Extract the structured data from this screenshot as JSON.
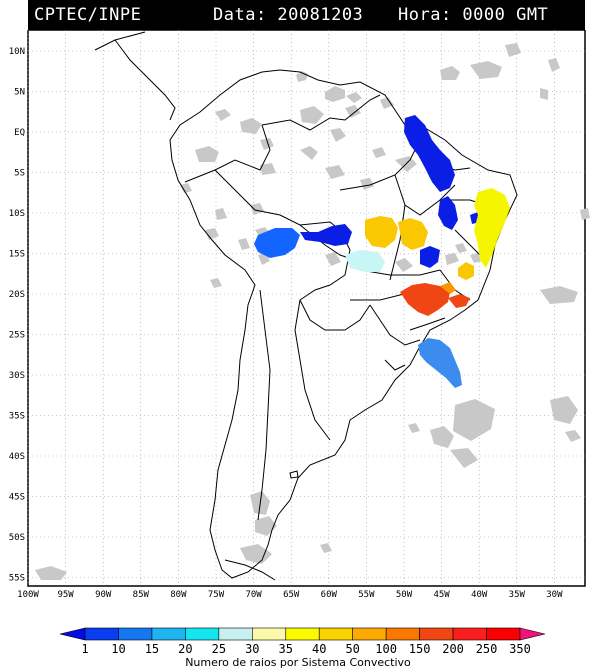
{
  "header": {
    "source": "CPTEC/INPE",
    "date_label": "Data: 20081203",
    "time_label": "Hora: 0000 GMT"
  },
  "axes": {
    "lat_labels": [
      "10N",
      "5N",
      "EQ",
      "5S",
      "10S",
      "15S",
      "20S",
      "25S",
      "30S",
      "35S",
      "40S",
      "45S",
      "50S",
      "55S"
    ],
    "lon_labels": [
      "100W",
      "95W",
      "90W",
      "85W",
      "80W",
      "75W",
      "70W",
      "65W",
      "60W",
      "55W",
      "50W",
      "45W",
      "40W",
      "35W",
      "30W"
    ]
  },
  "colorbar": {
    "title": "Numero de raios por Sistema Convectivo",
    "ticks": [
      "1",
      "10",
      "15",
      "20",
      "25",
      "30",
      "35",
      "40",
      "50",
      "100",
      "150",
      "200",
      "250",
      "350"
    ],
    "colors": [
      "#0a0ae8",
      "#0a3cf0",
      "#1478f0",
      "#1eb4f0",
      "#14e6f0",
      "#c8f0f0",
      "#fafaaa",
      "#fafa00",
      "#fad200",
      "#faaa00",
      "#fa7800",
      "#f04614",
      "#fa1e1e",
      "#fa0000",
      "#f0147a"
    ]
  },
  "palette": {
    "cloud": "#c8c8c8",
    "blue_dark": "#0a1ee6",
    "blue_mid": "#1464ff",
    "blue_light": "#3c8cf0",
    "cyan_pale": "#c8f5f5",
    "yellow": "#f5f500",
    "yellow_orange": "#fac800",
    "orange": "#fa9600",
    "red_orange": "#f04614"
  }
}
